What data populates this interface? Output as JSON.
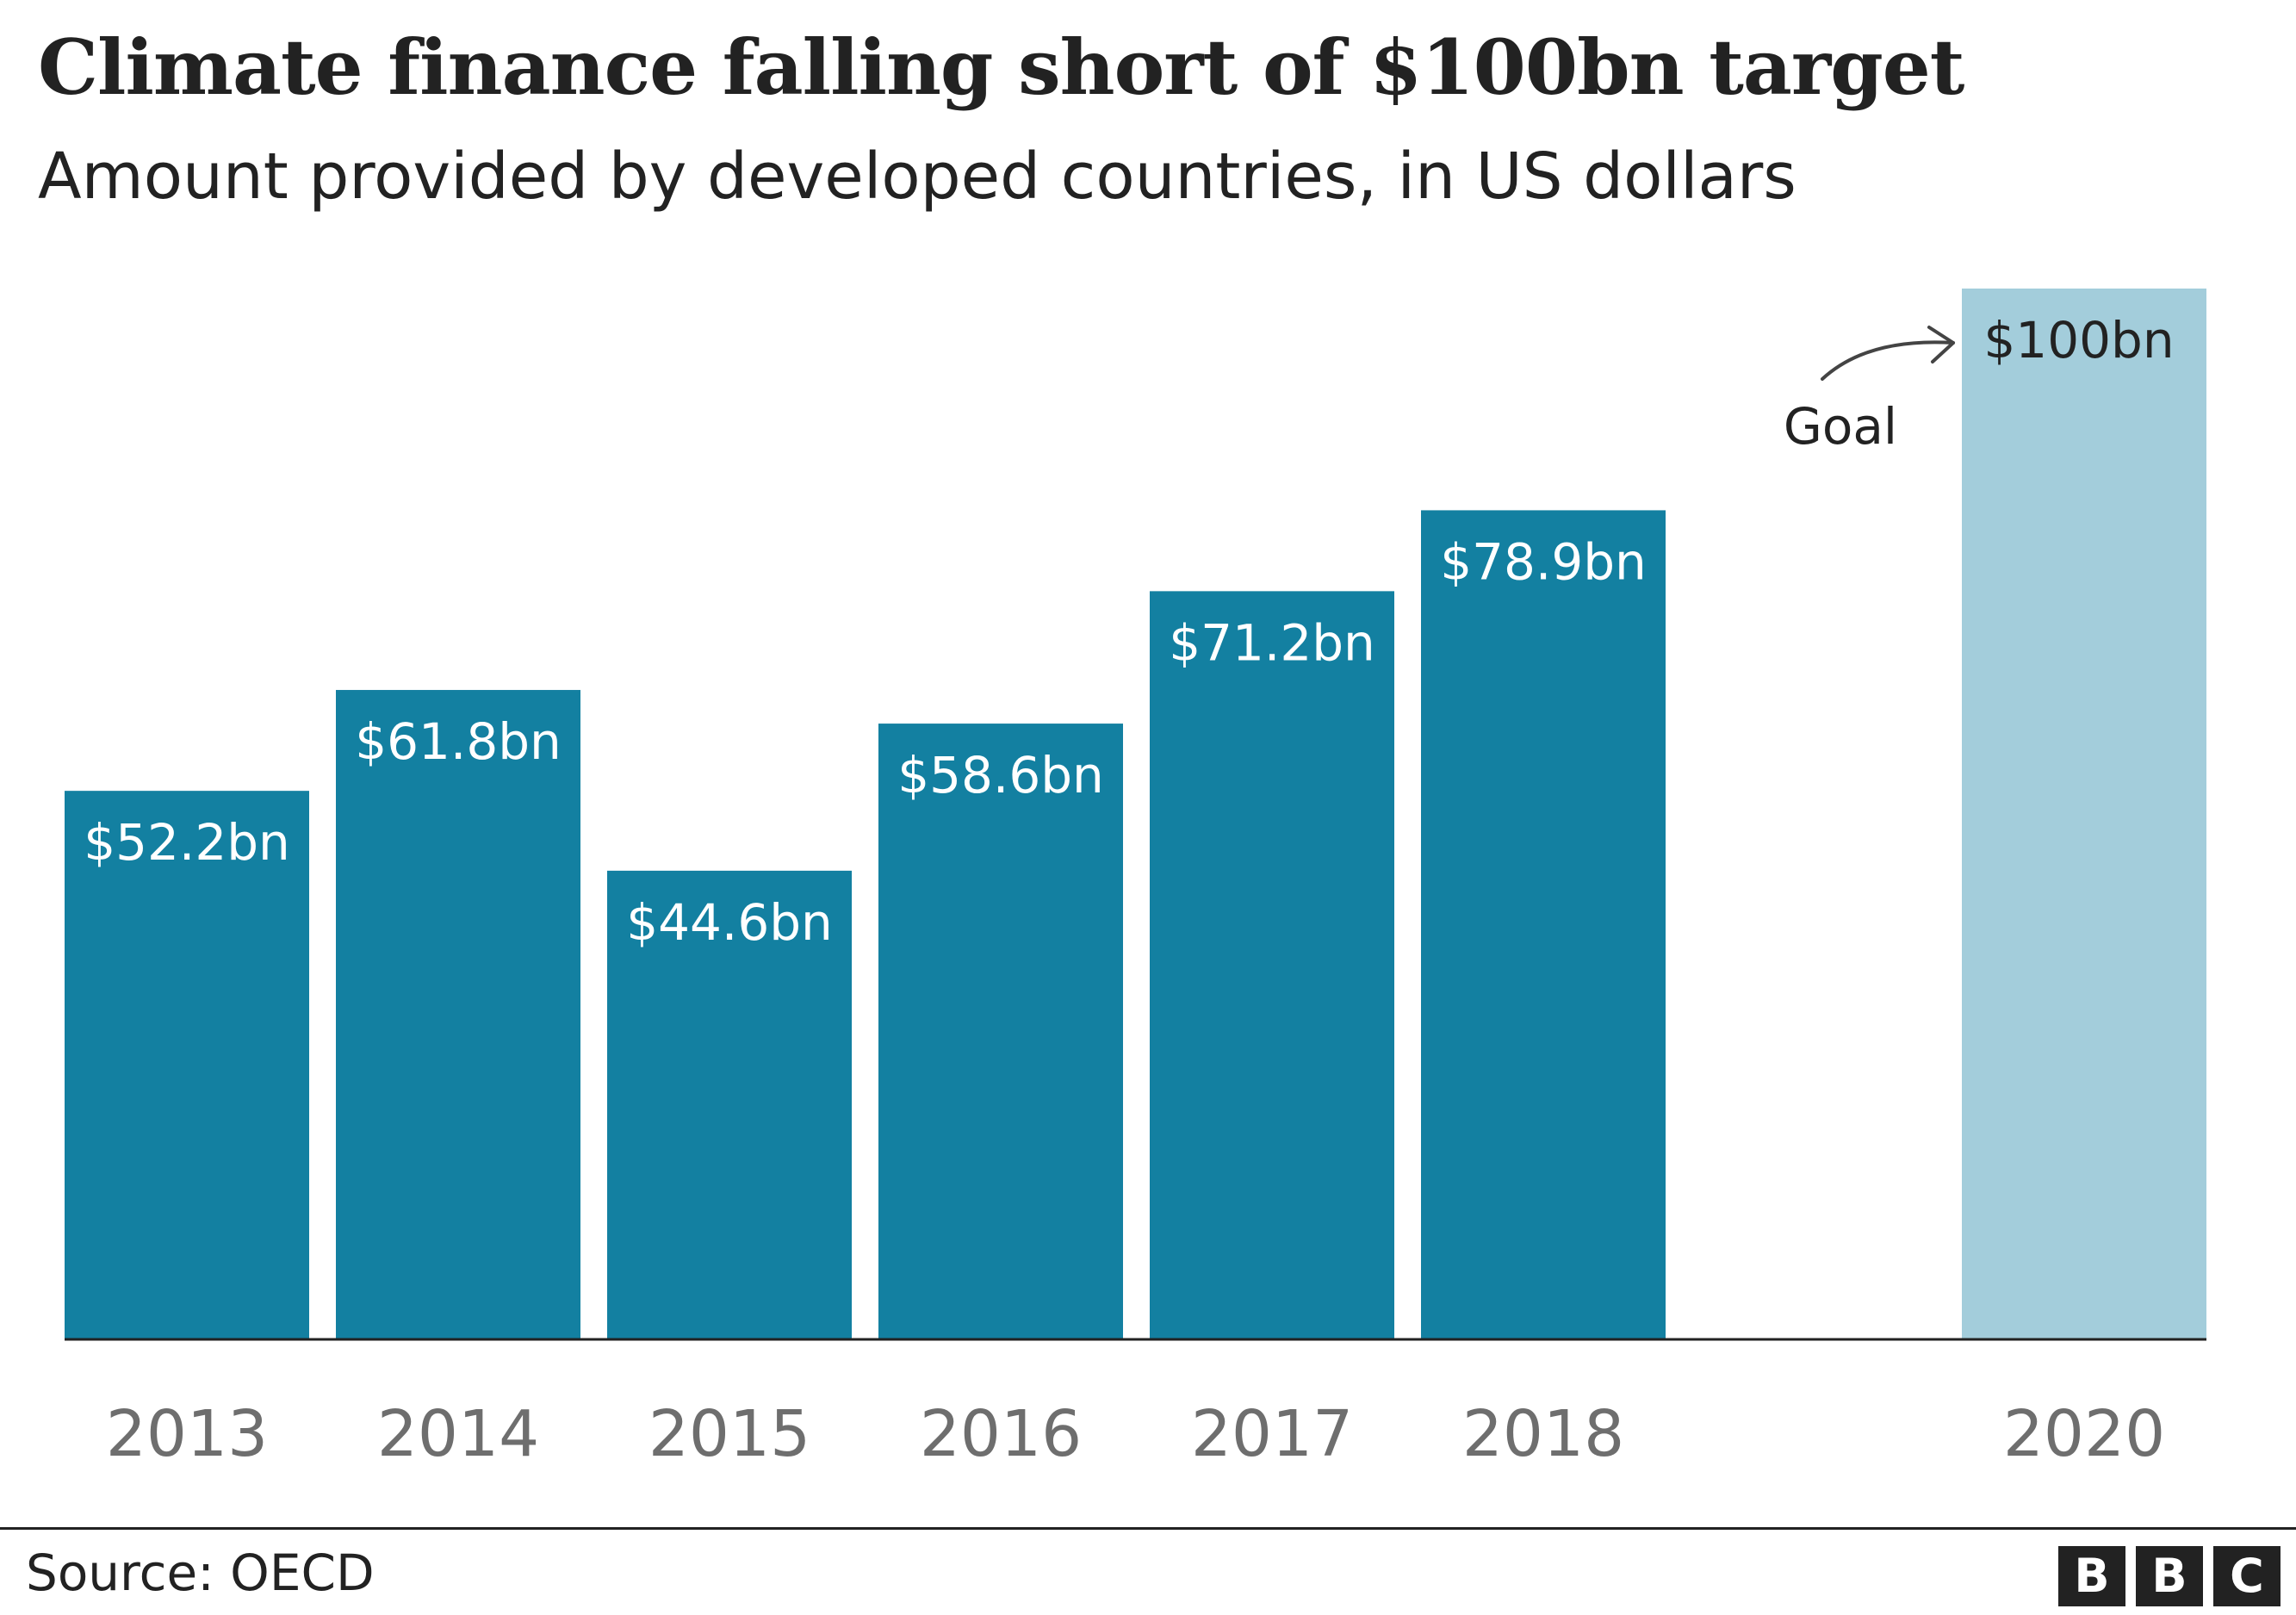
{
  "header": {
    "title": "Climate finance falling short of $100bn target",
    "subtitle": "Amount provided by developed countries, in US dollars"
  },
  "chart_data": {
    "type": "bar",
    "title": "Climate finance falling short of $100bn target",
    "subtitle": "Amount provided by developed countries, in US dollars",
    "xlabel": "",
    "ylabel": "",
    "categories": [
      "2013",
      "2014",
      "2015",
      "2016",
      "2017",
      "2018",
      "2020"
    ],
    "values": [
      52.2,
      61.8,
      44.6,
      58.6,
      71.2,
      78.9,
      100
    ],
    "data_labels": [
      "$52.2bn",
      "$61.8bn",
      "$44.6bn",
      "$58.6bn",
      "$71.2bn",
      "$78.9bn",
      "$100bn"
    ],
    "ylim": [
      0,
      100
    ],
    "grid": false,
    "annotation": {
      "text": "Goal",
      "target_category": "2020"
    },
    "colors": {
      "actual": "#1380A1",
      "goal": "#A3CDDB",
      "label_on_actual": "#ffffff",
      "label_on_goal": "#222222",
      "tick_label": "#6E6E6E",
      "baseline": "#222222"
    }
  },
  "footer": {
    "source": "Source: OECD",
    "logo_letters": [
      "B",
      "B",
      "C"
    ]
  }
}
